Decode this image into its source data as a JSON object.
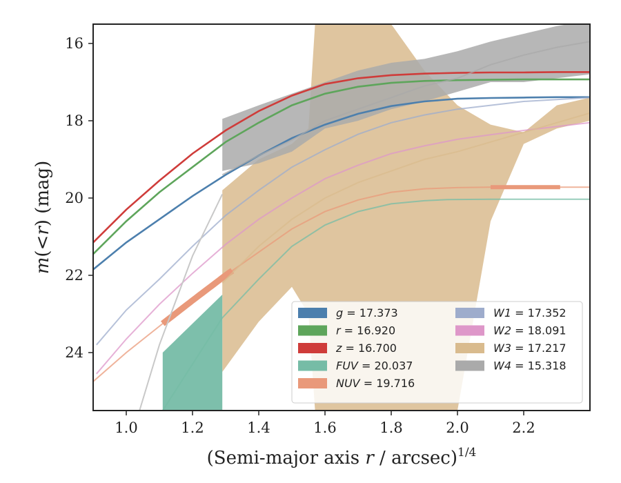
{
  "chart_data": {
    "type": "line",
    "title": "",
    "xlabel_main": "(Semi-major axis ",
    "xlabel_var": "r",
    "xlabel_unit": " / arcsec)",
    "xlabel_sup": "1/4",
    "ylabel_var_m": "m",
    "ylabel_open": "(",
    "ylabel_lt": "<",
    "ylabel_var_r": "r",
    "ylabel_close": ")",
    "ylabel_unit": "(mag)",
    "xlim": [
      0.9,
      2.4
    ],
    "ylim": [
      25.5,
      15.5
    ],
    "y_inverted": true,
    "xticks": [
      "1.0",
      "1.2",
      "1.4",
      "1.6",
      "1.8",
      "2.0",
      "2.2"
    ],
    "xtick_values": [
      1.0,
      1.2,
      1.4,
      1.6,
      1.8,
      2.0,
      2.2
    ],
    "yticks": [
      "16",
      "18",
      "20",
      "22",
      "24"
    ],
    "ytick_values": [
      16,
      18,
      20,
      22,
      24
    ],
    "grid": false,
    "legend_position": "lower-right",
    "series": [
      {
        "name": "g",
        "label": "g = 17.373",
        "var": "g",
        "value": "17.373",
        "color": "#4c7fad",
        "x": [
          0.9,
          1.0,
          1.1,
          1.2,
          1.3,
          1.4,
          1.5,
          1.6,
          1.7,
          1.8,
          1.9,
          2.0,
          2.1,
          2.2,
          2.3,
          2.4
        ],
        "y": [
          21.85,
          21.15,
          20.55,
          19.95,
          19.4,
          18.9,
          18.45,
          18.1,
          17.82,
          17.62,
          17.5,
          17.43,
          17.41,
          17.4,
          17.39,
          17.39
        ],
        "x_fit_start": 0.9
      },
      {
        "name": "r",
        "label": "r = 16.920",
        "var": "r",
        "value": "16.920",
        "color": "#5ea55b",
        "x": [
          0.9,
          1.0,
          1.1,
          1.2,
          1.3,
          1.4,
          1.5,
          1.6,
          1.7,
          1.8,
          1.9,
          2.0,
          2.1,
          2.2,
          2.3,
          2.4
        ],
        "y": [
          21.45,
          20.6,
          19.85,
          19.2,
          18.55,
          18.05,
          17.6,
          17.3,
          17.12,
          17.02,
          16.97,
          16.95,
          16.94,
          16.93,
          16.93,
          16.93
        ]
      },
      {
        "name": "z",
        "label": "z = 16.700",
        "var": "z",
        "value": "16.700",
        "color": "#cf3c3a",
        "x": [
          0.9,
          1.0,
          1.1,
          1.2,
          1.3,
          1.4,
          1.5,
          1.6,
          1.7,
          1.8,
          1.9,
          2.0,
          2.1,
          2.2,
          2.3,
          2.4
        ],
        "y": [
          21.15,
          20.3,
          19.55,
          18.85,
          18.25,
          17.75,
          17.35,
          17.05,
          16.9,
          16.82,
          16.78,
          16.76,
          16.75,
          16.75,
          16.74,
          16.74
        ]
      },
      {
        "name": "FUV",
        "label": "FUV = 20.037",
        "var": "FUV",
        "value": "20.037",
        "color": "#76bca6",
        "x": [
          1.11,
          1.2,
          1.29,
          1.4,
          1.5,
          1.6,
          1.7,
          1.8,
          1.9,
          1.97,
          2.1,
          2.2,
          2.3,
          2.4
        ],
        "y": [
          25.5,
          24.3,
          23.1,
          22.1,
          21.25,
          20.7,
          20.35,
          20.15,
          20.07,
          20.04,
          20.03,
          20.03,
          20.03,
          20.03
        ],
        "band_x": [
          1.11,
          1.29
        ],
        "band_hi": [
          24.0,
          22.5
        ],
        "band_lo": [
          25.5,
          25.5
        ]
      },
      {
        "name": "NUV",
        "label": "NUV = 19.716",
        "var": "NUV",
        "value": "19.716",
        "color": "#e9997a",
        "x": [
          0.9,
          1.0,
          1.11,
          1.2,
          1.3,
          1.4,
          1.5,
          1.6,
          1.7,
          1.8,
          1.9,
          2.0,
          2.1,
          2.2,
          2.31,
          2.4
        ],
        "y": [
          24.75,
          24.0,
          23.25,
          22.65,
          22.0,
          21.4,
          20.8,
          20.35,
          20.05,
          19.85,
          19.76,
          19.73,
          19.72,
          19.72,
          19.72,
          19.72
        ],
        "thick_range": [
          1.11,
          1.32
        ],
        "thick_range2": [
          2.1,
          2.31
        ]
      },
      {
        "name": "W1",
        "label": "W1 = 17.352",
        "var": "W1",
        "value": "17.352",
        "color": "#9eaccc",
        "x": [
          0.91,
          1.0,
          1.1,
          1.2,
          1.3,
          1.4,
          1.5,
          1.6,
          1.7,
          1.8,
          1.9,
          2.0,
          2.1,
          2.2,
          2.3,
          2.4
        ],
        "y": [
          23.8,
          22.9,
          22.1,
          21.25,
          20.45,
          19.8,
          19.2,
          18.75,
          18.35,
          18.05,
          17.85,
          17.7,
          17.6,
          17.5,
          17.45,
          17.4
        ]
      },
      {
        "name": "W2",
        "label": "W2 = 18.091",
        "var": "W2",
        "value": "18.091",
        "color": "#de97c9",
        "x": [
          0.91,
          1.0,
          1.1,
          1.2,
          1.3,
          1.4,
          1.5,
          1.6,
          1.7,
          1.8,
          1.9,
          2.0,
          2.1,
          2.2,
          2.3,
          2.4
        ],
        "y": [
          24.55,
          23.65,
          22.75,
          21.95,
          21.2,
          20.55,
          20.0,
          19.5,
          19.15,
          18.85,
          18.65,
          18.48,
          18.36,
          18.25,
          18.15,
          18.05
        ]
      },
      {
        "name": "W3",
        "label": "W3 = 17.217",
        "var": "W3",
        "value": "17.217",
        "color": "#d9bb8e",
        "x": [
          1.29,
          1.4,
          1.5,
          1.6,
          1.7,
          1.8,
          1.9,
          2.0,
          2.1,
          2.2,
          2.3,
          2.4
        ],
        "y": [
          22.2,
          21.25,
          20.55,
          20.0,
          19.6,
          19.3,
          19.0,
          18.8,
          18.55,
          18.3,
          18.05,
          17.8
        ],
        "band_x": [
          1.29,
          1.4,
          1.5,
          1.55,
          1.57,
          1.6,
          1.7,
          1.8,
          1.9,
          2.0,
          2.1,
          2.2,
          2.3,
          2.4
        ],
        "band_hi": [
          19.8,
          19.0,
          18.6,
          18.2,
          15.5,
          15.5,
          15.5,
          15.5,
          16.7,
          17.6,
          18.1,
          18.3,
          17.6,
          17.4
        ],
        "band_lo": [
          24.5,
          23.2,
          22.3,
          23.0,
          25.5,
          25.5,
          25.5,
          25.5,
          25.5,
          25.5,
          20.6,
          18.6,
          18.2,
          18.0
        ]
      },
      {
        "name": "W4",
        "label": "W4 = 15.318",
        "var": "W4",
        "value": "15.318",
        "color": "#aaaaaa",
        "x": [
          1.29,
          1.4,
          1.5,
          1.6,
          1.7,
          1.8,
          1.9,
          2.0,
          2.1,
          2.2,
          2.3,
          2.4
        ],
        "y": [
          19.4,
          18.9,
          18.5,
          18.0,
          17.7,
          17.4,
          17.1,
          16.9,
          16.55,
          16.3,
          16.1,
          15.95
        ],
        "band_x": [
          1.29,
          1.4,
          1.5,
          1.6,
          1.7,
          1.8,
          1.9,
          2.0,
          2.1,
          2.2,
          2.3,
          2.4
        ],
        "band_hi": [
          17.95,
          17.6,
          17.3,
          17.0,
          16.7,
          16.5,
          16.4,
          16.2,
          15.95,
          15.75,
          15.55,
          15.4
        ],
        "band_lo": [
          19.3,
          19.1,
          18.8,
          18.2,
          18.0,
          17.7,
          17.5,
          17.25,
          17.0,
          17.0,
          16.9,
          16.8
        ],
        "extra_curve_x": [
          1.04,
          1.1,
          1.2,
          1.29
        ],
        "extra_curve_y": [
          25.5,
          23.8,
          21.5,
          19.9
        ]
      }
    ]
  }
}
